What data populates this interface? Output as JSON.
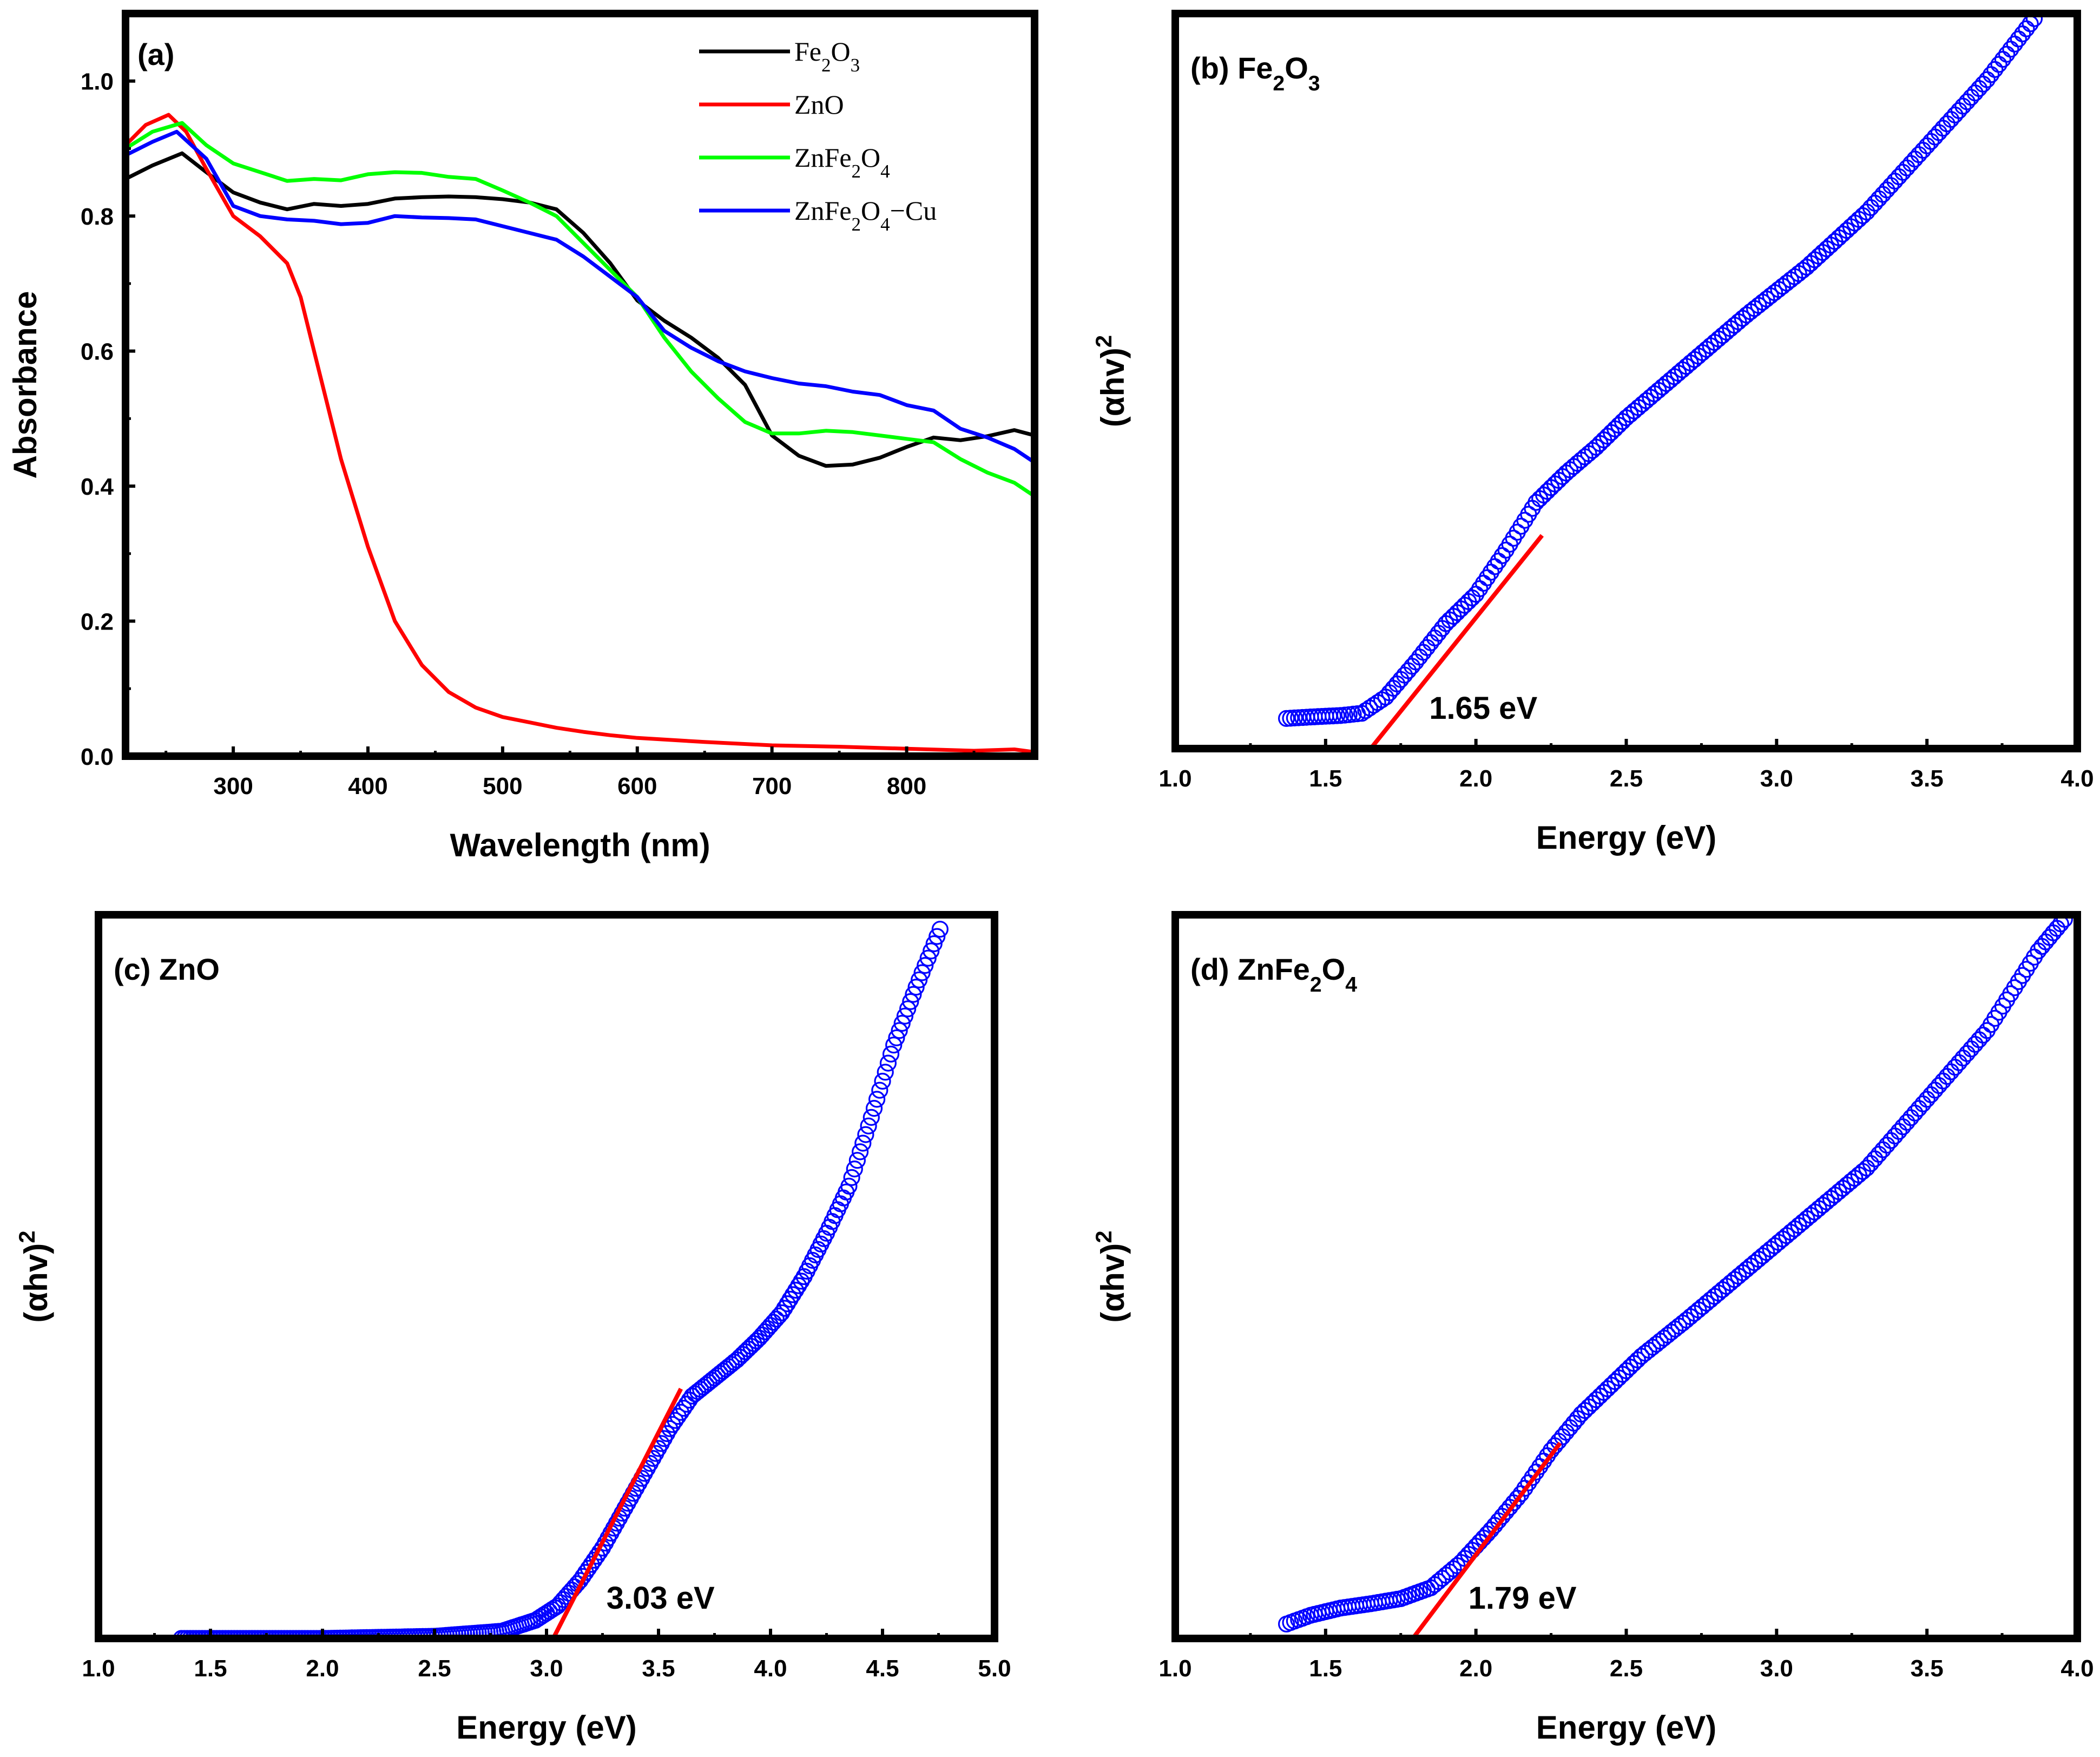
{
  "chart_data": [
    {
      "id": "a",
      "type": "line",
      "panel_label": "(a)",
      "xlabel": "Wavelength (nm)",
      "ylabel": "Absorbance",
      "xlim": [
        220,
        895
      ],
      "ylim": [
        0.0,
        1.1
      ],
      "xticks": [
        300,
        400,
        500,
        600,
        700,
        800
      ],
      "yticks": [
        0.0,
        0.2,
        0.4,
        0.6,
        0.8,
        1.0
      ],
      "ytick_labels": [
        "0.0",
        "0.2",
        "0.4",
        "0.6",
        "0.8",
        "1.0"
      ],
      "legend_position": "top-right",
      "series": [
        {
          "name": "Fe2O3",
          "label_parts": [
            [
              "Fe",
              ""
            ],
            [
              "2",
              "sub"
            ],
            [
              "O",
              ""
            ],
            [
              "3",
              "sub"
            ]
          ],
          "color": "#000000",
          "x": [
            220,
            240,
            262,
            280,
            300,
            320,
            340,
            360,
            380,
            400,
            420,
            440,
            460,
            480,
            500,
            520,
            540,
            560,
            580,
            600,
            620,
            640,
            660,
            680,
            700,
            720,
            740,
            760,
            780,
            800,
            820,
            840,
            860,
            880,
            895
          ],
          "y": [
            0.855,
            0.875,
            0.893,
            0.865,
            0.835,
            0.82,
            0.81,
            0.818,
            0.815,
            0.818,
            0.826,
            0.828,
            0.829,
            0.828,
            0.825,
            0.82,
            0.81,
            0.775,
            0.73,
            0.675,
            0.645,
            0.62,
            0.59,
            0.55,
            0.475,
            0.445,
            0.43,
            0.432,
            0.442,
            0.458,
            0.472,
            0.468,
            0.474,
            0.483,
            0.475
          ]
        },
        {
          "name": "ZnO",
          "label_parts": [
            [
              "ZnO",
              ""
            ]
          ],
          "color": "#ff0000",
          "x": [
            220,
            235,
            252,
            265,
            280,
            300,
            320,
            340,
            350,
            360,
            370,
            380,
            390,
            400,
            420,
            440,
            460,
            480,
            500,
            520,
            540,
            560,
            580,
            600,
            650,
            700,
            750,
            800,
            850,
            880,
            895
          ],
          "y": [
            0.905,
            0.935,
            0.95,
            0.925,
            0.87,
            0.8,
            0.77,
            0.73,
            0.68,
            0.6,
            0.52,
            0.44,
            0.375,
            0.31,
            0.2,
            0.135,
            0.095,
            0.072,
            0.058,
            0.05,
            0.042,
            0.036,
            0.031,
            0.027,
            0.021,
            0.016,
            0.014,
            0.011,
            0.008,
            0.01,
            0.006
          ]
        },
        {
          "name": "ZnFe2O4",
          "label_parts": [
            [
              "ZnFe",
              ""
            ],
            [
              "2",
              "sub"
            ],
            [
              "O",
              ""
            ],
            [
              "4",
              "sub"
            ]
          ],
          "color": "#00ff00",
          "x": [
            220,
            240,
            262,
            280,
            300,
            320,
            340,
            360,
            380,
            400,
            420,
            440,
            460,
            480,
            500,
            520,
            540,
            560,
            580,
            600,
            620,
            640,
            660,
            680,
            700,
            720,
            740,
            760,
            780,
            800,
            820,
            840,
            860,
            880,
            895
          ],
          "y": [
            0.9,
            0.925,
            0.938,
            0.905,
            0.878,
            0.865,
            0.852,
            0.855,
            0.853,
            0.862,
            0.865,
            0.864,
            0.858,
            0.855,
            0.838,
            0.82,
            0.8,
            0.76,
            0.72,
            0.68,
            0.62,
            0.57,
            0.53,
            0.495,
            0.478,
            0.478,
            0.482,
            0.48,
            0.475,
            0.47,
            0.465,
            0.44,
            0.42,
            0.405,
            0.385
          ]
        },
        {
          "name": "ZnFe2O4-Cu",
          "label_parts": [
            [
              "ZnFe",
              ""
            ],
            [
              "2",
              "sub"
            ],
            [
              "O",
              ""
            ],
            [
              "4",
              "sub"
            ],
            [
              "−Cu",
              ""
            ]
          ],
          "color": "#0000ff",
          "x": [
            220,
            240,
            258,
            280,
            300,
            320,
            340,
            360,
            380,
            400,
            420,
            440,
            460,
            480,
            500,
            520,
            540,
            560,
            580,
            600,
            620,
            640,
            660,
            680,
            700,
            720,
            740,
            760,
            780,
            800,
            820,
            840,
            860,
            880,
            895
          ],
          "y": [
            0.89,
            0.91,
            0.925,
            0.885,
            0.815,
            0.8,
            0.795,
            0.793,
            0.788,
            0.79,
            0.8,
            0.798,
            0.797,
            0.795,
            0.785,
            0.775,
            0.765,
            0.74,
            0.71,
            0.68,
            0.63,
            0.605,
            0.585,
            0.57,
            0.56,
            0.552,
            0.548,
            0.54,
            0.535,
            0.52,
            0.512,
            0.485,
            0.472,
            0.455,
            0.435
          ]
        }
      ]
    },
    {
      "id": "b",
      "type": "scatter",
      "panel_label_parts": [
        [
          "(b) Fe",
          ""
        ],
        [
          "2",
          "sub"
        ],
        [
          "O",
          ""
        ],
        [
          "3",
          "sub"
        ]
      ],
      "xlabel": "Energy (eV)",
      "ylabel": "(αhv)",
      "ylabel_sup": "2",
      "xlim": [
        1.0,
        4.0
      ],
      "ylim": [
        0.0,
        1.0
      ],
      "xticks": [
        "1.0",
        "1.5",
        "2.0",
        "2.5",
        "3.0",
        "3.5",
        "4.0"
      ],
      "curve": [
        [
          1.37,
          0.041
        ],
        [
          1.45,
          0.043
        ],
        [
          1.55,
          0.045
        ],
        [
          1.62,
          0.048
        ],
        [
          1.7,
          0.07
        ],
        [
          1.8,
          0.118
        ],
        [
          1.9,
          0.17
        ],
        [
          2.0,
          0.21
        ],
        [
          2.1,
          0.27
        ],
        [
          2.2,
          0.335
        ],
        [
          2.3,
          0.375
        ],
        [
          2.4,
          0.41
        ],
        [
          2.5,
          0.45
        ],
        [
          2.7,
          0.52
        ],
        [
          2.9,
          0.59
        ],
        [
          3.1,
          0.655
        ],
        [
          3.3,
          0.73
        ],
        [
          3.5,
          0.82
        ],
        [
          3.7,
          0.91
        ],
        [
          3.87,
          1.0
        ]
      ],
      "fit_line": [
        [
          1.65,
          0.0
        ],
        [
          2.22,
          0.29
        ]
      ],
      "band_gap_label": "1.65 eV",
      "marker_color": "#0000ff",
      "fit_color": "#ff0000"
    },
    {
      "id": "c",
      "type": "scatter",
      "panel_label_parts": [
        [
          "(c) ZnO",
          ""
        ]
      ],
      "xlabel": "Energy (eV)",
      "ylabel": "(αhv)",
      "ylabel_sup": "2",
      "xlim": [
        1.0,
        5.0
      ],
      "ylim": [
        0.0,
        1.0
      ],
      "xticks": [
        "1.0",
        "1.5",
        "2.0",
        "2.5",
        "3.0",
        "3.5",
        "4.0",
        "4.5",
        "5.0"
      ],
      "curve": [
        [
          1.37,
          0.0
        ],
        [
          2.0,
          0.0
        ],
        [
          2.5,
          0.003
        ],
        [
          2.8,
          0.01
        ],
        [
          2.95,
          0.025
        ],
        [
          3.05,
          0.045
        ],
        [
          3.15,
          0.08
        ],
        [
          3.25,
          0.125
        ],
        [
          3.35,
          0.18
        ],
        [
          3.45,
          0.235
        ],
        [
          3.55,
          0.29
        ],
        [
          3.65,
          0.335
        ],
        [
          3.75,
          0.36
        ],
        [
          3.85,
          0.385
        ],
        [
          3.95,
          0.415
        ],
        [
          4.05,
          0.45
        ],
        [
          4.15,
          0.5
        ],
        [
          4.25,
          0.56
        ],
        [
          4.35,
          0.625
        ],
        [
          4.45,
          0.72
        ],
        [
          4.55,
          0.82
        ],
        [
          4.65,
          0.9
        ],
        [
          4.77,
          0.99
        ]
      ],
      "fit_line": [
        [
          3.03,
          0.0
        ],
        [
          3.6,
          0.345
        ]
      ],
      "band_gap_label": "3.03 eV",
      "marker_color": "#0000ff",
      "fit_color": "#ff0000"
    },
    {
      "id": "d",
      "type": "scatter",
      "panel_label_parts": [
        [
          "(d) ZnFe",
          ""
        ],
        [
          "2",
          "sub"
        ],
        [
          "O",
          ""
        ],
        [
          "4",
          "sub"
        ]
      ],
      "xlabel": "Energy (eV)",
      "ylabel": "(αhv)",
      "ylabel_sup": "2",
      "xlim": [
        1.0,
        4.0
      ],
      "ylim": [
        0.0,
        1.0
      ],
      "xticks": [
        "1.0",
        "1.5",
        "2.0",
        "2.5",
        "3.0",
        "3.5",
        "4.0"
      ],
      "curve": [
        [
          1.37,
          0.02
        ],
        [
          1.45,
          0.032
        ],
        [
          1.55,
          0.042
        ],
        [
          1.65,
          0.048
        ],
        [
          1.75,
          0.055
        ],
        [
          1.85,
          0.07
        ],
        [
          1.95,
          0.105
        ],
        [
          2.05,
          0.15
        ],
        [
          2.15,
          0.2
        ],
        [
          2.25,
          0.26
        ],
        [
          2.35,
          0.31
        ],
        [
          2.45,
          0.35
        ],
        [
          2.55,
          0.39
        ],
        [
          2.7,
          0.44
        ],
        [
          2.9,
          0.51
        ],
        [
          3.1,
          0.58
        ],
        [
          3.3,
          0.65
        ],
        [
          3.5,
          0.745
        ],
        [
          3.7,
          0.84
        ],
        [
          3.87,
          0.95
        ],
        [
          3.97,
          1.0
        ]
      ],
      "fit_line": [
        [
          1.79,
          0.0
        ],
        [
          2.28,
          0.27
        ]
      ],
      "band_gap_label": "1.79 eV",
      "marker_color": "#0000ff",
      "fit_color": "#ff0000"
    }
  ]
}
